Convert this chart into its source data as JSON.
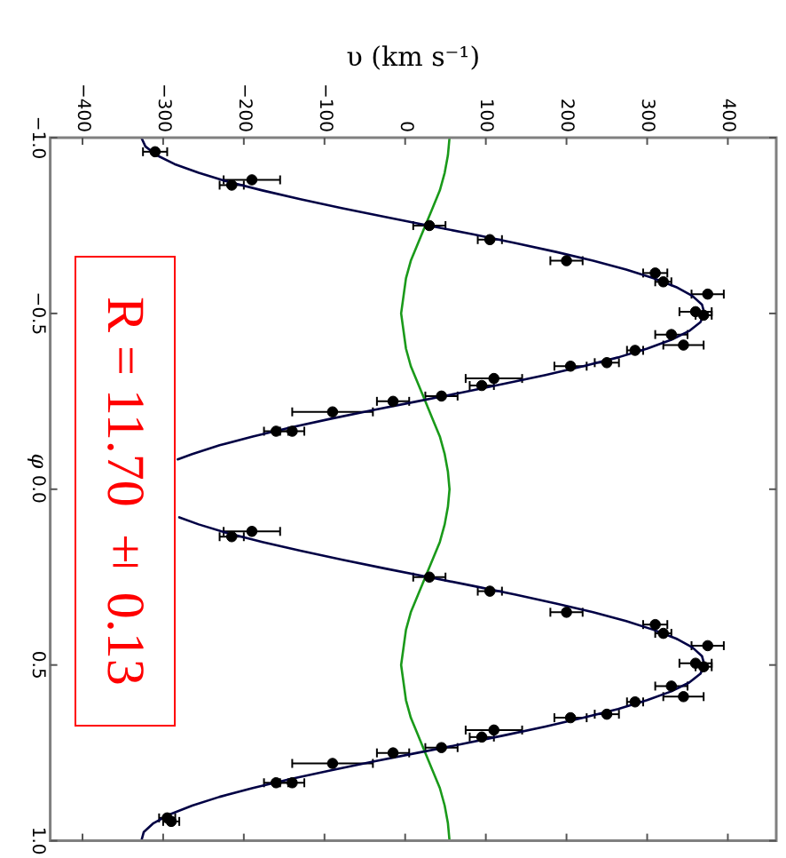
{
  "chart_data": {
    "type": "scatter",
    "xlabel": "υ (km s⁻¹)",
    "ylabel": "φ",
    "xlim": [
      -440,
      460
    ],
    "xticks": [
      {
        "value": -400,
        "label": "−400"
      },
      {
        "value": -300,
        "label": "−300"
      },
      {
        "value": -200,
        "label": "−200"
      },
      {
        "value": -100,
        "label": "−100"
      },
      0,
      100,
      200,
      300,
      400
    ],
    "ylim": [
      1,
      -1
    ],
    "yticks": [
      {
        "value": -1,
        "label": "−1.0"
      },
      {
        "value": -0.5,
        "label": "−0.5"
      },
      {
        "value": 0,
        "label": "0.0"
      },
      {
        "value": 0.5,
        "label": "0.5"
      },
      {
        "value": 1,
        "label": "1.0"
      }
    ],
    "series": [
      {
        "color": "#000000",
        "marker": "circle",
        "x": [
          -310,
          -190,
          -215,
          30,
          105,
          200,
          310,
          320,
          375,
          360,
          370,
          330,
          345,
          285,
          250,
          205,
          110,
          95,
          45,
          -15,
          -90,
          -160,
          -140,
          -190,
          -215,
          30,
          105,
          200,
          310,
          320,
          375,
          360,
          370,
          330,
          345,
          285,
          250,
          205,
          110,
          95,
          45,
          -15,
          -90,
          -160,
          -140,
          -295,
          -290
        ],
        "values": [
          -0.96,
          -0.88,
          -0.865,
          -0.75,
          -0.71,
          -0.65,
          -0.615,
          -0.59,
          -0.555,
          -0.505,
          -0.495,
          -0.44,
          -0.41,
          -0.395,
          -0.36,
          -0.35,
          -0.315,
          -0.295,
          -0.265,
          -0.25,
          -0.22,
          -0.165,
          -0.165,
          0.12,
          0.135,
          0.25,
          0.29,
          0.35,
          0.385,
          0.41,
          0.445,
          0.495,
          0.505,
          0.56,
          0.59,
          0.605,
          0.64,
          0.65,
          0.685,
          0.705,
          0.735,
          0.75,
          0.78,
          0.835,
          0.835,
          0.935,
          0.945
        ],
        "xerrors": [
          15,
          35,
          15,
          20,
          15,
          20,
          15,
          10,
          20,
          20,
          10,
          20,
          25,
          10,
          15,
          20,
          35,
          15,
          20,
          20,
          50,
          15,
          15,
          35,
          15,
          20,
          15,
          20,
          15,
          10,
          20,
          20,
          10,
          20,
          25,
          10,
          15,
          20,
          35,
          15,
          20,
          20,
          50,
          15,
          15,
          10,
          10
        ]
      },
      {
        "type": "line",
        "color": "#000044",
        "x": [
          -327,
          -322,
          -308,
          -286,
          -256,
          -220,
          -177,
          -130,
          -79,
          -26,
          29,
          84,
          137,
          187,
          233,
          274,
          308,
          336,
          356,
          368,
          371,
          366,
          352,
          330,
          300,
          264,
          221,
          174,
          123,
          70,
          15,
          -40,
          -93,
          -143,
          -189,
          -230,
          -264,
          -282,
          null,
          -280,
          -256,
          -220,
          -177,
          -130,
          -79,
          -26,
          29,
          84,
          137,
          187,
          233,
          274,
          308,
          336,
          356,
          368,
          371,
          366,
          352,
          330,
          300,
          264,
          221,
          174,
          123,
          70,
          15,
          -40,
          -93,
          -143,
          -189,
          -230,
          -264,
          -292,
          -312,
          -324,
          -327
        ],
        "values": [
          -1,
          -0.975,
          -0.95,
          -0.925,
          -0.9,
          -0.875,
          -0.85,
          -0.825,
          -0.8,
          -0.775,
          -0.75,
          -0.725,
          -0.7,
          -0.675,
          -0.65,
          -0.625,
          -0.6,
          -0.575,
          -0.55,
          -0.525,
          -0.5,
          -0.475,
          -0.45,
          -0.425,
          -0.4,
          -0.375,
          -0.35,
          -0.325,
          -0.3,
          -0.275,
          -0.25,
          -0.225,
          -0.2,
          -0.175,
          -0.15,
          -0.125,
          -0.1,
          -0.085,
          null,
          0.08,
          0.1,
          0.125,
          0.15,
          0.175,
          0.2,
          0.225,
          0.25,
          0.275,
          0.3,
          0.325,
          0.35,
          0.375,
          0.4,
          0.425,
          0.45,
          0.475,
          0.5,
          0.525,
          0.55,
          0.575,
          0.6,
          0.625,
          0.65,
          0.675,
          0.7,
          0.725,
          0.75,
          0.775,
          0.8,
          0.825,
          0.85,
          0.875,
          0.9,
          0.925,
          0.95,
          0.975,
          1
        ]
      },
      {
        "type": "line",
        "color": "#1a9a1a",
        "x": [
          55,
          53,
          49,
          43,
          34,
          25,
          16,
          7,
          1,
          -5,
          1,
          7,
          16,
          25,
          34,
          43,
          49,
          53,
          55,
          53,
          49,
          43,
          34,
          25,
          16,
          7,
          1,
          -5,
          1,
          7,
          16,
          25,
          34,
          43,
          49,
          53,
          55
        ],
        "values": [
          -1,
          -0.95,
          -0.9,
          -0.85,
          -0.8,
          -0.75,
          -0.7,
          -0.65,
          -0.6,
          -0.5,
          -0.4,
          -0.35,
          -0.3,
          -0.25,
          -0.2,
          -0.15,
          -0.1,
          -0.05,
          0,
          0.05,
          0.1,
          0.15,
          0.2,
          0.25,
          0.3,
          0.35,
          0.4,
          0.5,
          0.6,
          0.65,
          0.7,
          0.75,
          0.8,
          0.85,
          0.9,
          0.95,
          1
        ]
      }
    ],
    "annotations": [
      "R = 11.70 ± 0.13"
    ]
  }
}
